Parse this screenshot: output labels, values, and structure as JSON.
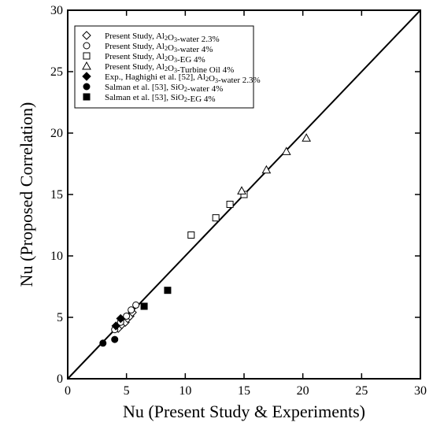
{
  "chart_data": {
    "type": "scatter",
    "xlabel": "Nu (Present Study & Experiments)",
    "ylabel": "Nu (Proposed Correlation)",
    "xlim": [
      0,
      30
    ],
    "ylim": [
      0,
      30
    ],
    "xticks": [
      0,
      5,
      10,
      15,
      20,
      25,
      30
    ],
    "yticks": [
      0,
      5,
      10,
      15,
      20,
      25,
      30
    ],
    "grid": false,
    "legend_position": "top-left",
    "reference_line": {
      "x": [
        0,
        30
      ],
      "y": [
        0,
        30
      ]
    },
    "series": [
      {
        "legend": [
          {
            "t": "Present Study, Al"
          },
          {
            "t": "2",
            "sub": true
          },
          {
            "t": "O"
          },
          {
            "t": "3",
            "sub": true
          },
          {
            "t": "-water 2.3%"
          }
        ],
        "marker": "diamond-open",
        "points": [
          [
            4.3,
            4.1
          ],
          [
            4.6,
            4.4
          ],
          [
            4.9,
            4.6
          ],
          [
            5.1,
            4.9
          ],
          [
            5.3,
            5.1
          ],
          [
            5.5,
            5.4
          ]
        ]
      },
      {
        "legend": [
          {
            "t": "Present Study, Al"
          },
          {
            "t": "2",
            "sub": true
          },
          {
            "t": "O"
          },
          {
            "t": "3",
            "sub": true
          },
          {
            "t": "-water 4%"
          }
        ],
        "marker": "circle-open",
        "points": [
          [
            4.0,
            4.0
          ],
          [
            4.5,
            4.6
          ],
          [
            5.0,
            5.1
          ],
          [
            5.4,
            5.6
          ],
          [
            5.8,
            6.0
          ]
        ]
      },
      {
        "legend": [
          {
            "t": "Present Study, Al"
          },
          {
            "t": "2",
            "sub": true
          },
          {
            "t": "O"
          },
          {
            "t": "3",
            "sub": true
          },
          {
            "t": "-EG 4%"
          }
        ],
        "marker": "square-open",
        "points": [
          [
            10.5,
            11.7
          ],
          [
            12.6,
            13.1
          ],
          [
            13.8,
            14.2
          ],
          [
            15.0,
            15.0
          ]
        ]
      },
      {
        "legend": [
          {
            "t": "Present Study, Al"
          },
          {
            "t": "2",
            "sub": true
          },
          {
            "t": "O"
          },
          {
            "t": "3",
            "sub": true
          },
          {
            "t": "-Turbine Oil 4%"
          }
        ],
        "marker": "triangle-open",
        "points": [
          [
            14.8,
            15.3
          ],
          [
            16.9,
            17.0
          ],
          [
            18.6,
            18.5
          ],
          [
            20.3,
            19.6
          ]
        ]
      },
      {
        "legend": [
          {
            "t": "Exp., Haghighi et al. [52], Al"
          },
          {
            "t": "2",
            "sub": true
          },
          {
            "t": "O"
          },
          {
            "t": "3",
            "sub": true
          },
          {
            "t": "-water 2.3%"
          }
        ],
        "marker": "diamond-filled",
        "points": [
          [
            4.1,
            4.3
          ],
          [
            4.5,
            4.9
          ]
        ]
      },
      {
        "legend": [
          {
            "t": "Salman et al. [53], SiO"
          },
          {
            "t": "2",
            "sub": true
          },
          {
            "t": "-water 4%"
          }
        ],
        "marker": "circle-filled",
        "points": [
          [
            3.0,
            2.9
          ],
          [
            4.0,
            3.2
          ]
        ]
      },
      {
        "legend": [
          {
            "t": "Salman et al. [53], SiO"
          },
          {
            "t": "2",
            "sub": true
          },
          {
            "t": "-EG 4%"
          }
        ],
        "marker": "square-filled",
        "points": [
          [
            6.5,
            5.9
          ],
          [
            8.5,
            7.2
          ]
        ]
      }
    ]
  }
}
